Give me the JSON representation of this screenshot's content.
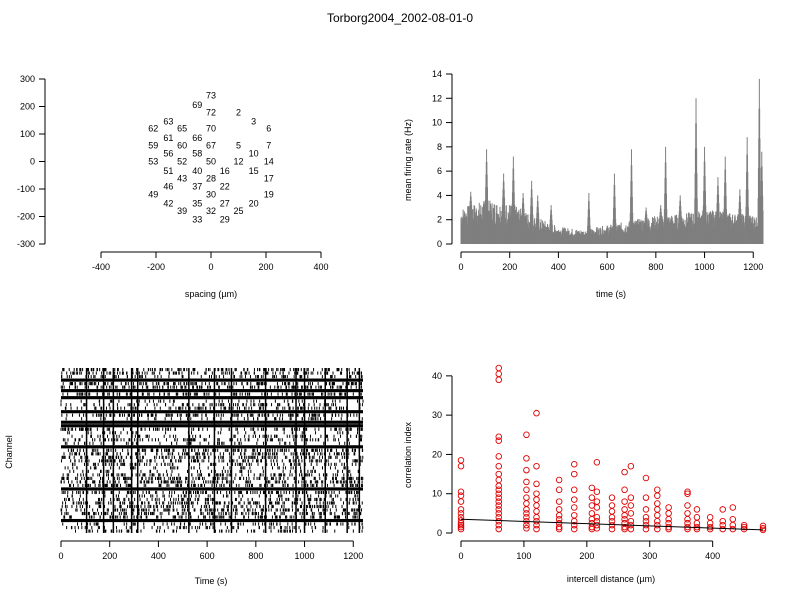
{
  "title": "Torborg2004_2002-08-01-0",
  "chart_data": [
    {
      "id": "layout",
      "type": "scatter",
      "xlabel": "spacing (µm)",
      "ylabel": "",
      "xlim": [
        -400,
        400
      ],
      "ylim": [
        -300,
        300
      ],
      "xticks": [
        -400,
        -200,
        0,
        200,
        400
      ],
      "yticks": [
        -300,
        -200,
        -100,
        0,
        100,
        200,
        300
      ],
      "point_labels": [
        {
          "label": "73",
          "x": 0,
          "y": 240
        },
        {
          "label": "69",
          "x": -50,
          "y": 205
        },
        {
          "label": "72",
          "x": 0,
          "y": 178
        },
        {
          "label": "2",
          "x": 100,
          "y": 178
        },
        {
          "label": "63",
          "x": -155,
          "y": 145
        },
        {
          "label": "3",
          "x": 155,
          "y": 145
        },
        {
          "label": "62",
          "x": -210,
          "y": 120
        },
        {
          "label": "65",
          "x": -105,
          "y": 120
        },
        {
          "label": "70",
          "x": 0,
          "y": 120
        },
        {
          "label": "6",
          "x": 210,
          "y": 120
        },
        {
          "label": "61",
          "x": -155,
          "y": 85
        },
        {
          "label": "66",
          "x": -50,
          "y": 85
        },
        {
          "label": "59",
          "x": -210,
          "y": 58
        },
        {
          "label": "60",
          "x": -105,
          "y": 58
        },
        {
          "label": "67",
          "x": 0,
          "y": 58
        },
        {
          "label": "5",
          "x": 100,
          "y": 58
        },
        {
          "label": "7",
          "x": 210,
          "y": 58
        },
        {
          "label": "56",
          "x": -155,
          "y": 30
        },
        {
          "label": "58",
          "x": -50,
          "y": 30
        },
        {
          "label": "10",
          "x": 155,
          "y": 30
        },
        {
          "label": "53",
          "x": -210,
          "y": 0
        },
        {
          "label": "52",
          "x": -105,
          "y": 0
        },
        {
          "label": "50",
          "x": 0,
          "y": 0
        },
        {
          "label": "12",
          "x": 100,
          "y": 0
        },
        {
          "label": "14",
          "x": 210,
          "y": 0
        },
        {
          "label": "51",
          "x": -155,
          "y": -35
        },
        {
          "label": "40",
          "x": -50,
          "y": -35
        },
        {
          "label": "16",
          "x": 50,
          "y": -35
        },
        {
          "label": "15",
          "x": 155,
          "y": -35
        },
        {
          "label": "43",
          "x": -105,
          "y": -62
        },
        {
          "label": "28",
          "x": 0,
          "y": -62
        },
        {
          "label": "17",
          "x": 210,
          "y": -62
        },
        {
          "label": "46",
          "x": -155,
          "y": -90
        },
        {
          "label": "37",
          "x": -50,
          "y": -90
        },
        {
          "label": "22",
          "x": 50,
          "y": -90
        },
        {
          "label": "49",
          "x": -210,
          "y": -120
        },
        {
          "label": "30",
          "x": 0,
          "y": -120
        },
        {
          "label": "19",
          "x": 210,
          "y": -120
        },
        {
          "label": "42",
          "x": -155,
          "y": -152
        },
        {
          "label": "35",
          "x": -50,
          "y": -152
        },
        {
          "label": "27",
          "x": 50,
          "y": -152
        },
        {
          "label": "20",
          "x": 155,
          "y": -152
        },
        {
          "label": "39",
          "x": -105,
          "y": -180
        },
        {
          "label": "32",
          "x": 0,
          "y": -180
        },
        {
          "label": "25",
          "x": 100,
          "y": -180
        },
        {
          "label": "33",
          "x": -50,
          "y": -210
        },
        {
          "label": "29",
          "x": 50,
          "y": -210
        }
      ]
    },
    {
      "id": "rate",
      "type": "area",
      "xlabel": "time (s)",
      "ylabel": "mean firing rate (Hz)",
      "xlim": [
        0,
        1240
      ],
      "ylim": [
        0,
        14
      ],
      "xticks": [
        0,
        200,
        400,
        600,
        800,
        1000,
        1200
      ],
      "yticks": [
        0,
        2,
        4,
        6,
        8,
        10,
        12,
        14
      ],
      "baseline": [
        {
          "x": 0,
          "y": 2.3
        },
        {
          "x": 100,
          "y": 2.8
        },
        {
          "x": 200,
          "y": 2.6
        },
        {
          "x": 300,
          "y": 1.8
        },
        {
          "x": 400,
          "y": 1.1
        },
        {
          "x": 500,
          "y": 0.9
        },
        {
          "x": 600,
          "y": 1.2
        },
        {
          "x": 700,
          "y": 1.5
        },
        {
          "x": 800,
          "y": 1.8
        },
        {
          "x": 900,
          "y": 1.9
        },
        {
          "x": 1000,
          "y": 2.2
        },
        {
          "x": 1100,
          "y": 2.0
        },
        {
          "x": 1240,
          "y": 1.8
        }
      ],
      "peaks": [
        {
          "x": 40,
          "y": 4.3
        },
        {
          "x": 105,
          "y": 7.8
        },
        {
          "x": 175,
          "y": 5.8
        },
        {
          "x": 215,
          "y": 7.2
        },
        {
          "x": 255,
          "y": 4.2
        },
        {
          "x": 290,
          "y": 5.2
        },
        {
          "x": 315,
          "y": 4.0
        },
        {
          "x": 370,
          "y": 3.2
        },
        {
          "x": 525,
          "y": 4.2
        },
        {
          "x": 630,
          "y": 5.8
        },
        {
          "x": 700,
          "y": 7.8
        },
        {
          "x": 760,
          "y": 3.0
        },
        {
          "x": 820,
          "y": 3.2
        },
        {
          "x": 840,
          "y": 8.0
        },
        {
          "x": 900,
          "y": 4.0
        },
        {
          "x": 965,
          "y": 12.0
        },
        {
          "x": 1000,
          "y": 8.0
        },
        {
          "x": 1055,
          "y": 5.5
        },
        {
          "x": 1085,
          "y": 7.2
        },
        {
          "x": 1145,
          "y": 4.5
        },
        {
          "x": 1175,
          "y": 8.8
        },
        {
          "x": 1225,
          "y": 13.6
        },
        {
          "x": 1235,
          "y": 7.6
        }
      ]
    },
    {
      "id": "raster",
      "type": "heatmap",
      "xlabel": "Time (s)",
      "ylabel": "Channel",
      "xlim": [
        0,
        1240
      ],
      "xticks": [
        0,
        200,
        400,
        600,
        800,
        1000,
        1200
      ],
      "channels": 47
    },
    {
      "id": "corr",
      "type": "scatter",
      "xlabel": "intercell distance (µm)",
      "ylabel": "correlation index",
      "xlim": [
        0,
        480
      ],
      "ylim": [
        0,
        42
      ],
      "xticks": [
        0,
        100,
        200,
        300,
        400
      ],
      "yticks": [
        0,
        10,
        20,
        30,
        40
      ],
      "point_color": "#e00000",
      "fit_line": [
        {
          "x": 0,
          "y": 3.5
        },
        {
          "x": 480,
          "y": 0.8
        }
      ],
      "points": [
        {
          "x": 0,
          "y": 18.5
        },
        {
          "x": 0,
          "y": 17.0
        },
        {
          "x": 0,
          "y": 10.5
        },
        {
          "x": 0,
          "y": 9.5
        },
        {
          "x": 0,
          "y": 8.0
        },
        {
          "x": 0,
          "y": 6.0
        },
        {
          "x": 0,
          "y": 5.0
        },
        {
          "x": 0,
          "y": 4.0
        },
        {
          "x": 0,
          "y": 3.2
        },
        {
          "x": 0,
          "y": 2.5
        },
        {
          "x": 0,
          "y": 2.0
        },
        {
          "x": 0,
          "y": 1.5
        },
        {
          "x": 0,
          "y": 1.0
        },
        {
          "x": 60,
          "y": 42.0
        },
        {
          "x": 60,
          "y": 40.5
        },
        {
          "x": 60,
          "y": 39.0
        },
        {
          "x": 60,
          "y": 24.5
        },
        {
          "x": 60,
          "y": 23.5
        },
        {
          "x": 60,
          "y": 19.5
        },
        {
          "x": 60,
          "y": 17.0
        },
        {
          "x": 60,
          "y": 15.0
        },
        {
          "x": 60,
          "y": 13.5
        },
        {
          "x": 60,
          "y": 12.0
        },
        {
          "x": 60,
          "y": 11.0
        },
        {
          "x": 60,
          "y": 10.0
        },
        {
          "x": 60,
          "y": 9.0
        },
        {
          "x": 60,
          "y": 8.0
        },
        {
          "x": 60,
          "y": 7.0
        },
        {
          "x": 60,
          "y": 6.0
        },
        {
          "x": 60,
          "y": 5.0
        },
        {
          "x": 60,
          "y": 4.0
        },
        {
          "x": 60,
          "y": 3.0
        },
        {
          "x": 60,
          "y": 2.0
        },
        {
          "x": 60,
          "y": 1.0
        },
        {
          "x": 104,
          "y": 25.0
        },
        {
          "x": 104,
          "y": 19.0
        },
        {
          "x": 104,
          "y": 16.0
        },
        {
          "x": 104,
          "y": 13.0
        },
        {
          "x": 104,
          "y": 11.0
        },
        {
          "x": 104,
          "y": 9.0
        },
        {
          "x": 104,
          "y": 7.5
        },
        {
          "x": 104,
          "y": 6.0
        },
        {
          "x": 104,
          "y": 5.0
        },
        {
          "x": 104,
          "y": 4.0
        },
        {
          "x": 104,
          "y": 3.0
        },
        {
          "x": 104,
          "y": 2.0
        },
        {
          "x": 104,
          "y": 1.2
        },
        {
          "x": 120,
          "y": 30.5
        },
        {
          "x": 120,
          "y": 17.0
        },
        {
          "x": 120,
          "y": 12.5
        },
        {
          "x": 120,
          "y": 10.0
        },
        {
          "x": 120,
          "y": 8.5
        },
        {
          "x": 120,
          "y": 7.0
        },
        {
          "x": 120,
          "y": 5.5
        },
        {
          "x": 120,
          "y": 4.0
        },
        {
          "x": 120,
          "y": 3.0
        },
        {
          "x": 120,
          "y": 2.0
        },
        {
          "x": 120,
          "y": 1.0
        },
        {
          "x": 156,
          "y": 13.5
        },
        {
          "x": 156,
          "y": 11.0
        },
        {
          "x": 156,
          "y": 8.0
        },
        {
          "x": 156,
          "y": 6.0
        },
        {
          "x": 156,
          "y": 4.5
        },
        {
          "x": 156,
          "y": 3.5
        },
        {
          "x": 156,
          "y": 2.5
        },
        {
          "x": 156,
          "y": 1.5
        },
        {
          "x": 156,
          "y": 1.0
        },
        {
          "x": 180,
          "y": 17.5
        },
        {
          "x": 180,
          "y": 15.0
        },
        {
          "x": 180,
          "y": 11.0
        },
        {
          "x": 180,
          "y": 8.5
        },
        {
          "x": 180,
          "y": 6.5
        },
        {
          "x": 180,
          "y": 4.5
        },
        {
          "x": 180,
          "y": 3.0
        },
        {
          "x": 180,
          "y": 2.0
        },
        {
          "x": 180,
          "y": 1.0
        },
        {
          "x": 208,
          "y": 11.5
        },
        {
          "x": 208,
          "y": 9.0
        },
        {
          "x": 208,
          "y": 7.0
        },
        {
          "x": 208,
          "y": 5.0
        },
        {
          "x": 208,
          "y": 3.5
        },
        {
          "x": 208,
          "y": 2.5
        },
        {
          "x": 208,
          "y": 1.5
        },
        {
          "x": 208,
          "y": 1.0
        },
        {
          "x": 216,
          "y": 18.0
        },
        {
          "x": 216,
          "y": 10.5
        },
        {
          "x": 216,
          "y": 8.0
        },
        {
          "x": 216,
          "y": 6.5
        },
        {
          "x": 216,
          "y": 4.0
        },
        {
          "x": 216,
          "y": 3.0
        },
        {
          "x": 216,
          "y": 2.0
        },
        {
          "x": 216,
          "y": 1.2
        },
        {
          "x": 240,
          "y": 9.0
        },
        {
          "x": 240,
          "y": 7.0
        },
        {
          "x": 240,
          "y": 5.5
        },
        {
          "x": 240,
          "y": 4.0
        },
        {
          "x": 240,
          "y": 3.0
        },
        {
          "x": 240,
          "y": 2.0
        },
        {
          "x": 240,
          "y": 1.0
        },
        {
          "x": 260,
          "y": 15.5
        },
        {
          "x": 260,
          "y": 11.0
        },
        {
          "x": 260,
          "y": 8.0
        },
        {
          "x": 260,
          "y": 6.0
        },
        {
          "x": 260,
          "y": 4.5
        },
        {
          "x": 260,
          "y": 3.5
        },
        {
          "x": 260,
          "y": 2.5
        },
        {
          "x": 260,
          "y": 1.5
        },
        {
          "x": 260,
          "y": 1.0
        },
        {
          "x": 270,
          "y": 17.0
        },
        {
          "x": 270,
          "y": 9.0
        },
        {
          "x": 270,
          "y": 7.0
        },
        {
          "x": 270,
          "y": 5.0
        },
        {
          "x": 270,
          "y": 3.0
        },
        {
          "x": 270,
          "y": 2.0
        },
        {
          "x": 270,
          "y": 1.0
        },
        {
          "x": 294,
          "y": 14.0
        },
        {
          "x": 294,
          "y": 9.0
        },
        {
          "x": 294,
          "y": 6.0
        },
        {
          "x": 294,
          "y": 4.0
        },
        {
          "x": 294,
          "y": 3.0
        },
        {
          "x": 294,
          "y": 2.0
        },
        {
          "x": 294,
          "y": 1.0
        },
        {
          "x": 312,
          "y": 11.0
        },
        {
          "x": 312,
          "y": 9.5
        },
        {
          "x": 312,
          "y": 7.5
        },
        {
          "x": 312,
          "y": 6.0
        },
        {
          "x": 312,
          "y": 4.5
        },
        {
          "x": 312,
          "y": 3.0
        },
        {
          "x": 312,
          "y": 2.0
        },
        {
          "x": 312,
          "y": 1.0
        },
        {
          "x": 330,
          "y": 6.5
        },
        {
          "x": 330,
          "y": 5.0
        },
        {
          "x": 330,
          "y": 3.5
        },
        {
          "x": 330,
          "y": 2.5
        },
        {
          "x": 330,
          "y": 1.5
        },
        {
          "x": 330,
          "y": 1.0
        },
        {
          "x": 360,
          "y": 10.5
        },
        {
          "x": 360,
          "y": 10.0
        },
        {
          "x": 360,
          "y": 7.0
        },
        {
          "x": 360,
          "y": 5.0
        },
        {
          "x": 360,
          "y": 3.5
        },
        {
          "x": 360,
          "y": 2.5
        },
        {
          "x": 360,
          "y": 1.5
        },
        {
          "x": 360,
          "y": 1.0
        },
        {
          "x": 375,
          "y": 6.0
        },
        {
          "x": 375,
          "y": 4.0
        },
        {
          "x": 375,
          "y": 2.5
        },
        {
          "x": 375,
          "y": 1.5
        },
        {
          "x": 375,
          "y": 1.0
        },
        {
          "x": 396,
          "y": 4.0
        },
        {
          "x": 396,
          "y": 2.5
        },
        {
          "x": 396,
          "y": 1.5
        },
        {
          "x": 396,
          "y": 1.0
        },
        {
          "x": 416,
          "y": 6.0
        },
        {
          "x": 416,
          "y": 3.0
        },
        {
          "x": 416,
          "y": 2.0
        },
        {
          "x": 416,
          "y": 1.0
        },
        {
          "x": 432,
          "y": 6.5
        },
        {
          "x": 432,
          "y": 3.5
        },
        {
          "x": 432,
          "y": 2.0
        },
        {
          "x": 432,
          "y": 1.0
        },
        {
          "x": 450,
          "y": 2.0
        },
        {
          "x": 450,
          "y": 1.5
        },
        {
          "x": 450,
          "y": 1.0
        },
        {
          "x": 480,
          "y": 1.8
        },
        {
          "x": 480,
          "y": 1.2
        },
        {
          "x": 480,
          "y": 0.8
        }
      ]
    }
  ]
}
